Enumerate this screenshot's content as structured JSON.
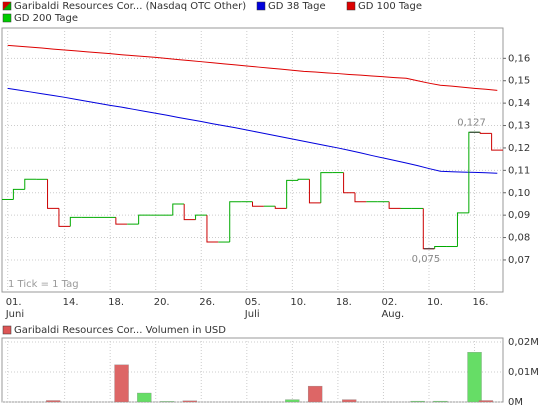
{
  "chart_data": {
    "type": "step",
    "legend": "top-left",
    "grid": true,
    "tick_note": "1 Tick = 1 Tag",
    "categories": [
      "01.",
      null,
      null,
      null,
      null,
      "14.",
      null,
      null,
      null,
      "18.",
      null,
      null,
      null,
      "20.",
      null,
      null,
      null,
      "26.",
      null,
      null,
      null,
      "05.",
      null,
      null,
      null,
      "10.",
      null,
      null,
      null,
      "18.",
      null,
      null,
      null,
      "02.",
      null,
      null,
      null,
      "10.",
      null,
      null,
      null,
      "16.",
      null,
      null
    ],
    "months": [
      "Juni",
      null,
      null,
      null,
      null,
      null,
      null,
      null,
      null,
      null,
      null,
      null,
      null,
      null,
      null,
      null,
      null,
      null,
      null,
      null,
      null,
      "Juli",
      null,
      null,
      null,
      null,
      null,
      null,
      null,
      null,
      null,
      null,
      null,
      "Aug.",
      null,
      null,
      null,
      null,
      null,
      null,
      null,
      null,
      null,
      null
    ],
    "ylim": [
      0.0557,
      0.178
    ],
    "yticks": [
      {
        "value": 0.07,
        "label": "0,07"
      },
      {
        "value": 0.08,
        "label": "0,08"
      },
      {
        "value": 0.09,
        "label": "0,09"
      },
      {
        "value": 0.1,
        "label": "0,10"
      },
      {
        "value": 0.11,
        "label": "0,11"
      },
      {
        "value": 0.12,
        "label": "0,12"
      },
      {
        "value": 0.13,
        "label": "0,13"
      },
      {
        "value": 0.14,
        "label": "0,14"
      },
      {
        "value": 0.15,
        "label": "0,15"
      },
      {
        "value": 0.16,
        "label": "0,16"
      }
    ],
    "high": {
      "value": 0.127,
      "label": "0,127"
    },
    "low": {
      "value": 0.075,
      "label": "0,075"
    },
    "price": {
      "name": "Garibaldi Resources Cor... (Nasdaq OTC Other)",
      "up_color": "#00aa00",
      "down_color": "#cc0000",
      "values": [
        0.097,
        0.1015,
        0.106,
        0.106,
        0.093,
        0.085,
        0.089,
        0.089,
        0.089,
        0.089,
        0.086,
        0.086,
        0.09,
        0.09,
        0.09,
        0.095,
        0.088,
        0.09,
        0.078,
        0.078,
        0.096,
        0.096,
        0.094,
        0.094,
        0.093,
        0.1055,
        0.106,
        0.0955,
        0.109,
        0.109,
        0.1,
        0.096,
        0.096,
        0.096,
        0.093,
        0.093,
        0.093,
        0.075,
        0.076,
        0.076,
        0.091,
        0.127,
        0.1265,
        0.119
      ]
    },
    "series": [
      {
        "name": "GD 38 Tage",
        "color": "#0000dd",
        "values": [
          0.1466,
          0.1458,
          0.145,
          0.1442,
          0.1434,
          0.1426,
          0.1417,
          0.1408,
          0.1399,
          0.139,
          0.1382,
          0.1373,
          0.1364,
          0.1355,
          0.1346,
          0.1336,
          0.1327,
          0.1318,
          0.1308,
          0.1299,
          0.129,
          0.128,
          0.127,
          0.126,
          0.125,
          0.124,
          0.123,
          0.122,
          0.121,
          0.12,
          0.1189,
          0.1178,
          0.1166,
          0.1155,
          0.1144,
          0.1133,
          0.1121,
          0.1108,
          0.1096,
          0.1094,
          0.1092,
          0.1091,
          0.1089,
          0.1087
        ]
      },
      {
        "name": "GD 100 Tage",
        "color": "#dd0000",
        "values": [
          0.1658,
          0.1654,
          0.165,
          0.1646,
          0.1641,
          0.1637,
          0.1633,
          0.1629,
          0.1625,
          0.1621,
          0.1616,
          0.1612,
          0.1608,
          0.1604,
          0.1599,
          0.1594,
          0.159,
          0.1585,
          0.158,
          0.1575,
          0.1571,
          0.1566,
          0.1561,
          0.1556,
          0.1552,
          0.1547,
          0.1542,
          0.1539,
          0.1535,
          0.1532,
          0.1528,
          0.1525,
          0.1521,
          0.1518,
          0.1514,
          0.1511,
          0.15,
          0.1489,
          0.148,
          0.1476,
          0.1471,
          0.1466,
          0.1462,
          0.1457
        ]
      },
      {
        "name": "GD 200 Tage",
        "color": "#00cc00",
        "values": [
          null,
          null,
          null,
          null,
          null,
          null,
          null,
          null,
          null,
          null,
          null,
          null,
          null,
          null,
          null,
          null,
          null,
          null,
          null,
          null,
          null,
          null,
          null,
          null,
          null,
          null,
          null,
          null,
          null,
          null,
          null,
          null,
          null,
          null,
          null,
          null,
          null,
          null,
          null,
          null,
          null,
          null,
          null,
          null
        ]
      }
    ],
    "volume": {
      "title": "Garibaldi Resources Cor... Volumen in USD",
      "color": "#dd5555",
      "up_color": "#66dd66",
      "down_color": "#dd6666",
      "ylim": [
        0,
        0.02
      ],
      "yticks": [
        {
          "value": 0,
          "label": "0M"
        },
        {
          "value": 0.01,
          "label": "0,01M"
        },
        {
          "value": 0.02,
          "label": "0,02M"
        }
      ],
      "values": [
        0,
        0,
        0,
        0,
        0.0005,
        0,
        0,
        0,
        0,
        0,
        0.0124,
        0,
        0.003,
        0,
        0.0002,
        0,
        0.0004,
        0,
        0,
        0,
        0,
        0,
        0,
        0,
        0,
        0.0008,
        0,
        0.0053,
        0,
        0,
        0.0008,
        0,
        0,
        0,
        0,
        0,
        0.0003,
        0,
        0.0003,
        0,
        0,
        0.0166,
        0.0005,
        0
      ]
    }
  }
}
